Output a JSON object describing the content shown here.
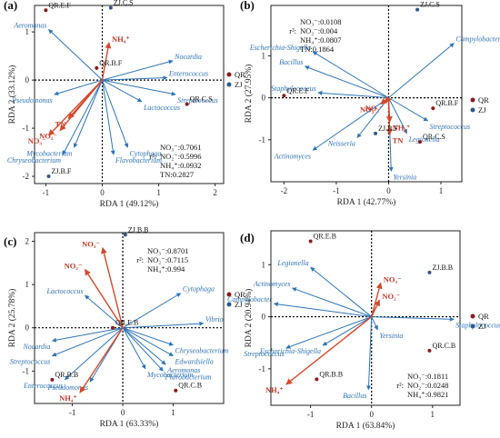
{
  "chart_data": [
    {
      "type": "scatter",
      "panel_label": "(a)",
      "xlabel": "RDA 1 (49.12%)",
      "ylabel": "RDA 2 (33.12%)",
      "xlim": [
        -1.2,
        2.15
      ],
      "ylim": [
        -2.15,
        1.55
      ],
      "xticks": [
        -1,
        0,
        1,
        2
      ],
      "yticks": [
        -2,
        -1,
        0,
        1
      ],
      "legend": {
        "placement": "right",
        "entries": [
          {
            "name": "QR",
            "color": "#8b1a1a"
          },
          {
            "name": "ZJ",
            "color": "#2e5a8a"
          }
        ]
      },
      "env_vectors": [
        {
          "label": "NH₄⁺",
          "x": 0.12,
          "y": 0.78
        },
        {
          "label": "TN",
          "x": -0.6,
          "y": -0.8
        },
        {
          "label": "NO₂⁻",
          "x": -0.75,
          "y": -1.05
        },
        {
          "label": "NO₃⁻",
          "x": -0.95,
          "y": -1.15
        }
      ],
      "species_vectors": [
        {
          "label": "Aeromonas",
          "x": -0.95,
          "y": 1.05
        },
        {
          "label": "Nocardia",
          "x": 1.25,
          "y": 0.4
        },
        {
          "label": "Enterococcus",
          "x": 1.15,
          "y": 0.05
        },
        {
          "label": "Streptococcus",
          "x": 1.3,
          "y": -0.3
        },
        {
          "label": "Lactococcus",
          "x": 0.7,
          "y": -0.45
        },
        {
          "label": "Pseudomonas",
          "x": -0.85,
          "y": -0.3
        },
        {
          "label": "Cytophaga",
          "x": 0.45,
          "y": -1.4
        },
        {
          "label": "Flavobacterium",
          "x": 0.2,
          "y": -1.55
        },
        {
          "label": "Mycobacterium",
          "x": -0.5,
          "y": -1.4
        },
        {
          "label": "Chryseobacterium",
          "x": -0.7,
          "y": -1.55
        }
      ],
      "samples": [
        {
          "label": "QR.E.F",
          "group": "QR",
          "x": -1.0,
          "y": 1.45
        },
        {
          "label": "ZJ.C.S",
          "group": "ZJ",
          "x": 0.15,
          "y": 1.5
        },
        {
          "label": "QR.B.F",
          "group": "QR",
          "x": -0.1,
          "y": 0.25
        },
        {
          "label": "QR.C.S",
          "group": "QR",
          "x": 1.5,
          "y": -0.5
        },
        {
          "label": "ZJ.B.F",
          "group": "ZJ",
          "x": -0.95,
          "y": -2.0
        }
      ],
      "stats": [
        "NO₃⁻:0.7061",
        "NO₂⁻:0.5996",
        "NH₄⁺:0.0932",
        "TN:0.2827"
      ],
      "r2_label": "r²:"
    },
    {
      "type": "scatter",
      "panel_label": "(b)",
      "xlabel": "RDA 1 (42.77%)",
      "ylabel": "RDA 2 (27.95%)",
      "xlim": [
        -2.25,
        1.4
      ],
      "ylim": [
        -2.0,
        2.2
      ],
      "xticks": [
        -2,
        -1,
        0,
        1
      ],
      "yticks": [
        -1,
        0,
        1
      ],
      "legend": {
        "placement": "right",
        "entries": [
          {
            "name": "QR",
            "color": "#8b1a1a"
          },
          {
            "name": "ZJ",
            "color": "#2e5a8a"
          }
        ]
      },
      "env_vectors": [
        {
          "label": "NO₂⁻",
          "x": -0.05,
          "y": -0.12
        },
        {
          "label": "NO₃⁻",
          "x": -0.15,
          "y": -0.15
        },
        {
          "label": "NH₄⁺",
          "x": 0.02,
          "y": -0.58
        },
        {
          "label": "TN",
          "x": 0.02,
          "y": -0.88
        }
      ],
      "species_vectors": [
        {
          "label": "Campylobacter",
          "x": 1.25,
          "y": 1.3
        },
        {
          "label": "Escherichia-Shigella",
          "x": -1.45,
          "y": 1.1
        },
        {
          "label": "Bacillus",
          "x": -1.6,
          "y": 0.75
        },
        {
          "label": "Staphylococcus",
          "x": -1.35,
          "y": 0.12
        },
        {
          "label": "Streptococcus",
          "x": 0.75,
          "y": -0.55
        },
        {
          "label": "Legionella",
          "x": 0.35,
          "y": -0.85
        },
        {
          "label": "Neisseria",
          "x": -0.6,
          "y": -0.95
        },
        {
          "label": "Actinomyces",
          "x": -1.45,
          "y": -1.25
        },
        {
          "label": "Yersinia",
          "x": 0.05,
          "y": -1.75
        }
      ],
      "samples": [
        {
          "label": "ZJ.C.S",
          "group": "ZJ",
          "x": 0.55,
          "y": 2.1
        },
        {
          "label": "QR.E.F",
          "group": "QR",
          "x": -2.0,
          "y": 0.05
        },
        {
          "label": "QR.B.F",
          "group": "QR",
          "x": 0.85,
          "y": -0.25
        },
        {
          "label": "ZJ.B.F",
          "group": "ZJ",
          "x": -0.25,
          "y": -0.85
        },
        {
          "label": "QR.C.S",
          "group": "QR",
          "x": 0.6,
          "y": -1.05
        }
      ],
      "stats": [
        "NO₃⁻:0.0108",
        "NO₂⁻:0.004",
        "NH₄⁺:0.0807",
        "TN:0.1864"
      ],
      "r2_label": "r²:"
    },
    {
      "type": "scatter",
      "panel_label": "(c)",
      "xlabel": "RDA 1 (63.33%)",
      "ylabel": "RDA 2 (25.78%)",
      "xlim": [
        -1.75,
        2.0
      ],
      "ylim": [
        -1.75,
        2.2
      ],
      "xticks": [
        -1,
        0,
        1
      ],
      "yticks": [
        -1,
        0,
        1,
        2
      ],
      "legend": {
        "placement": "right",
        "entries": [
          {
            "name": "QR",
            "color": "#8b1a1a"
          },
          {
            "name": "ZJ",
            "color": "#2e5a8a"
          }
        ]
      },
      "env_vectors": [
        {
          "label": "NO₃⁻",
          "x": -0.4,
          "y": 1.85
        },
        {
          "label": "NO₂⁻",
          "x": -0.75,
          "y": 1.35
        },
        {
          "label": "NH₄⁺",
          "x": -0.85,
          "y": -1.5
        }
      ],
      "species_vectors": [
        {
          "label": "Cytophaga",
          "x": 1.15,
          "y": 0.8
        },
        {
          "label": "Vibrio",
          "x": 1.6,
          "y": 0.1
        },
        {
          "label": "Lactococcus",
          "x": -0.75,
          "y": 0.75
        },
        {
          "label": "Chryseobacterium",
          "x": 1.0,
          "y": -0.4
        },
        {
          "label": "Edwardsiella",
          "x": 1.0,
          "y": -0.65
        },
        {
          "label": "Aeromonas",
          "x": 0.85,
          "y": -0.85
        },
        {
          "label": "Flavobacterium",
          "x": 0.8,
          "y": -1.0
        },
        {
          "label": "Mycobacterium",
          "x": 0.45,
          "y": -0.95
        },
        {
          "label": "Nocardia",
          "x": -1.4,
          "y": -0.3
        },
        {
          "label": "Streptococcus",
          "x": -1.4,
          "y": -0.65
        },
        {
          "label": "Enterococcus",
          "x": -1.15,
          "y": -1.2
        },
        {
          "label": "Pseudomonas",
          "x": -0.65,
          "y": -1.25
        }
      ],
      "samples": [
        {
          "label": "ZJ.B.B",
          "group": "ZJ",
          "x": 0.05,
          "y": 2.15
        },
        {
          "label": "QR.E.B",
          "group": "QR",
          "x": -0.2,
          "y": 0.0
        },
        {
          "label": "QR.B.B",
          "group": "QR",
          "x": -1.4,
          "y": -1.2
        },
        {
          "label": "QR.C.B",
          "group": "QR",
          "x": 1.05,
          "y": -1.45
        }
      ],
      "stats": [
        "NO₃⁻:0.8701",
        "NO₂⁻:0.7115",
        "NH₄⁺:0.994"
      ],
      "r2_label": "r²:"
    },
    {
      "type": "scatter",
      "panel_label": "(d)",
      "xlabel": "RDA 1 (63.84%)",
      "ylabel": "RDA 2 (20.94%)",
      "xlim": [
        -1.65,
        1.45
      ],
      "ylim": [
        -1.7,
        1.65
      ],
      "xticks": [
        -1,
        0,
        1
      ],
      "yticks": [
        -1,
        0,
        1
      ],
      "legend": {
        "placement": "right",
        "entries": [
          {
            "name": "QR",
            "color": "#8b1a1a"
          },
          {
            "name": "ZJ",
            "color": "#2e5a8a"
          }
        ]
      },
      "env_vectors": [
        {
          "label": "NO₃⁻",
          "x": 0.15,
          "y": 0.65
        },
        {
          "label": "NO₂⁻",
          "x": 0.13,
          "y": 0.32
        },
        {
          "label": "NH₄⁺",
          "x": -1.4,
          "y": -1.3
        }
      ],
      "species_vectors": [
        {
          "label": "Legionella",
          "x": -1.0,
          "y": 0.95
        },
        {
          "label": "Actinomyces",
          "x": -1.3,
          "y": 0.55
        },
        {
          "label": "Campylobacter",
          "x": -1.6,
          "y": 0.25
        },
        {
          "label": "Staphylococcus",
          "x": 1.35,
          "y": -0.05
        },
        {
          "label": "Yersinia",
          "x": 0.1,
          "y": -0.25
        },
        {
          "label": "Escherichia-Shigella",
          "x": -0.8,
          "y": -0.55
        },
        {
          "label": "Streptococcus",
          "x": -1.4,
          "y": -0.6
        },
        {
          "label": "Bacillus",
          "x": -0.05,
          "y": -1.4
        }
      ],
      "samples": [
        {
          "label": "QR.E.B",
          "group": "QR",
          "x": -1.0,
          "y": 1.45
        },
        {
          "label": "ZJ.B.B",
          "group": "ZJ",
          "x": 0.95,
          "y": 0.85
        },
        {
          "label": "QR.C.B",
          "group": "QR",
          "x": 0.95,
          "y": -0.65
        },
        {
          "label": "QR.B.B",
          "group": "QR",
          "x": -0.9,
          "y": -1.2
        }
      ],
      "stats": [
        "NO₃⁻:0.1811",
        "NO₂⁻:0.0248",
        "NH₄⁺:0.9821"
      ],
      "r2_label": "r²:"
    }
  ],
  "colors": {
    "species_arrow": "#2e74b5",
    "env_arrow": "#d24a2d",
    "env_label": "#c0392b",
    "species_label": "#2e74b5",
    "sample_text": "#111111",
    "axis": "#222222",
    "qr_point": "#8b1a1a",
    "zj_point": "#2e5a8a"
  }
}
